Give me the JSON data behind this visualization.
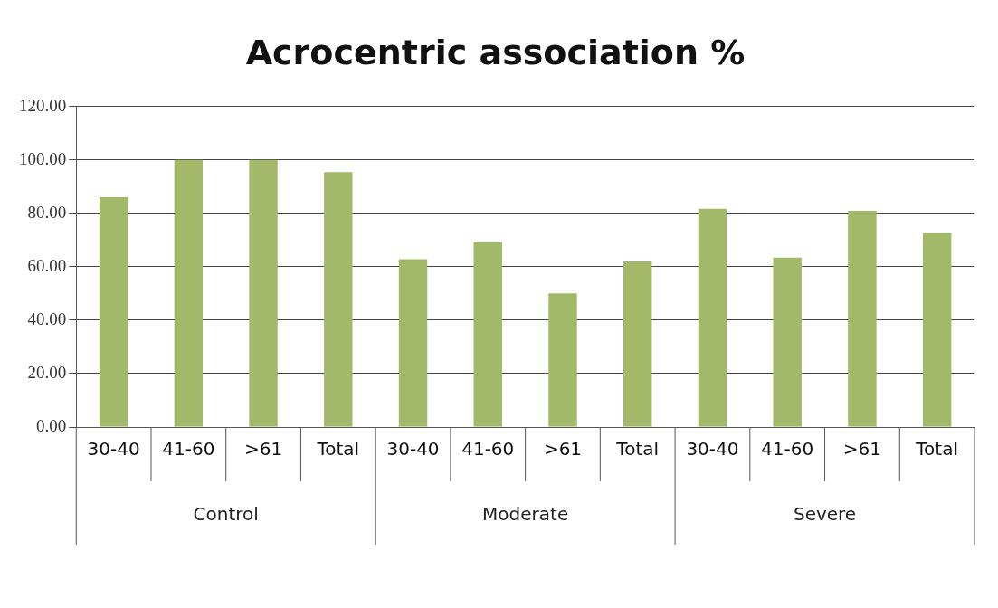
{
  "chart_data": {
    "type": "bar",
    "title": "Acrocentric association %",
    "categories": [
      "30-40",
      "41-60",
      ">61",
      "Total",
      "30-40",
      "41-60",
      ">61",
      "Total",
      "30-40",
      "41-60",
      ">61",
      "Total"
    ],
    "values": [
      86.0,
      100.0,
      100.0,
      95.4,
      62.8,
      69.2,
      50.0,
      62.0,
      81.7,
      63.4,
      80.9,
      72.7
    ],
    "color": "#a3b96a",
    "ylim": [
      0,
      120
    ],
    "yticks": [
      {
        "value": 0,
        "label": "0.00"
      },
      {
        "value": 20,
        "label": "20.00"
      },
      {
        "value": 40,
        "label": "40.00"
      },
      {
        "value": 60,
        "label": "60.00"
      },
      {
        "value": 80,
        "label": "80.00"
      },
      {
        "value": 100,
        "label": "100.00"
      },
      {
        "value": 120,
        "label": "120.00"
      }
    ],
    "annotations": [
      "Control",
      "Moderate",
      "Severe"
    ],
    "grid": "y",
    "legend": false
  }
}
